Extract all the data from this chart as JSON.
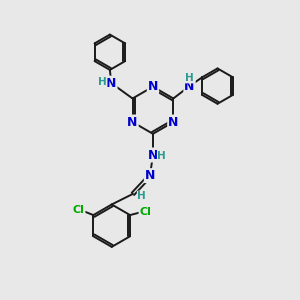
{
  "bg_color": "#e8e8e8",
  "bond_color": "#1a1a1a",
  "N_color": "#0000cc",
  "Cl_color": "#00aa00",
  "H_color": "#2a9d8f",
  "figsize": [
    3.0,
    3.0
  ],
  "dpi": 100,
  "xlim": [
    0,
    10
  ],
  "ylim": [
    0,
    10
  ]
}
